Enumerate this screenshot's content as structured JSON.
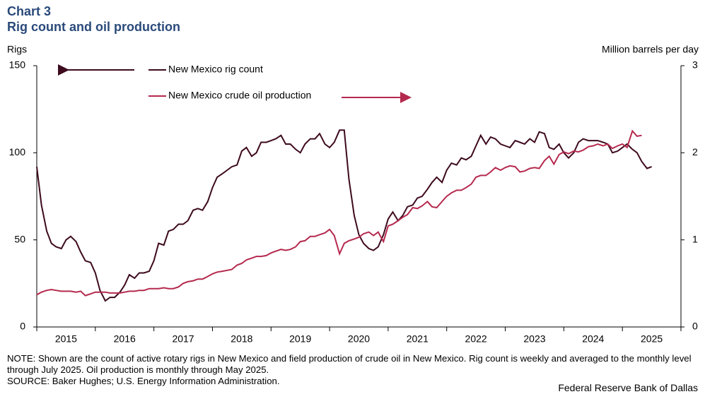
{
  "chart_data": {
    "type": "line",
    "chart_number": "Chart 3",
    "title": "Rig count and oil production",
    "y_label": "Rigs",
    "y2_label": "Million barrels per day",
    "note": "NOTE: Shown are the count of active rotary rigs in New Mexico and field production of crude oil in New Mexico. Rig count is weekly and averaged to the monthly level through July 2025. Oil production is monthly through May 2025.",
    "source": "SOURCE: Baker Hughes; U.S. Energy Information Administration.",
    "credit": "Federal Reserve Bank of Dallas",
    "xlim": [
      2015,
      2026
    ],
    "xticks": [
      {
        "value": 2015.5,
        "label": "2015"
      },
      {
        "value": 2016.5,
        "label": "2016"
      },
      {
        "value": 2017.5,
        "label": "2017"
      },
      {
        "value": 2018.5,
        "label": "2018"
      },
      {
        "value": 2019.5,
        "label": "2019"
      },
      {
        "value": 2020.5,
        "label": "2020"
      },
      {
        "value": 2021.5,
        "label": "2021"
      },
      {
        "value": 2022.5,
        "label": "2022"
      },
      {
        "value": 2023.5,
        "label": "2023"
      },
      {
        "value": 2024.5,
        "label": "2024"
      },
      {
        "value": 2025.5,
        "label": "2025"
      }
    ],
    "ylim": [
      0,
      150
    ],
    "yticks": [
      0,
      50,
      100,
      150
    ],
    "y2lim": [
      0,
      3
    ],
    "y2ticks": [
      0,
      1,
      2,
      3
    ],
    "x": [
      2015.0,
      2015.08,
      2015.17,
      2015.25,
      2015.33,
      2015.42,
      2015.5,
      2015.58,
      2015.67,
      2015.75,
      2015.83,
      2015.92,
      2016.0,
      2016.08,
      2016.17,
      2016.25,
      2016.33,
      2016.42,
      2016.5,
      2016.58,
      2016.67,
      2016.75,
      2016.83,
      2016.92,
      2017.0,
      2017.08,
      2017.17,
      2017.25,
      2017.33,
      2017.42,
      2017.5,
      2017.58,
      2017.67,
      2017.75,
      2017.83,
      2017.92,
      2018.0,
      2018.08,
      2018.17,
      2018.25,
      2018.33,
      2018.42,
      2018.5,
      2018.58,
      2018.67,
      2018.75,
      2018.83,
      2018.92,
      2019.0,
      2019.08,
      2019.17,
      2019.25,
      2019.33,
      2019.42,
      2019.5,
      2019.58,
      2019.67,
      2019.75,
      2019.83,
      2019.92,
      2020.0,
      2020.08,
      2020.17,
      2020.25,
      2020.33,
      2020.42,
      2020.5,
      2020.58,
      2020.67,
      2020.75,
      2020.83,
      2020.92,
      2021.0,
      2021.08,
      2021.17,
      2021.25,
      2021.33,
      2021.42,
      2021.5,
      2021.58,
      2021.67,
      2021.75,
      2021.83,
      2021.92,
      2022.0,
      2022.08,
      2022.17,
      2022.25,
      2022.33,
      2022.42,
      2022.5,
      2022.58,
      2022.67,
      2022.75,
      2022.83,
      2022.92,
      2023.0,
      2023.08,
      2023.17,
      2023.25,
      2023.33,
      2023.42,
      2023.5,
      2023.58,
      2023.67,
      2023.75,
      2023.83,
      2023.92,
      2024.0,
      2024.08,
      2024.17,
      2024.25,
      2024.33,
      2024.42,
      2024.5,
      2024.58,
      2024.67,
      2024.75,
      2024.83,
      2024.92,
      2025.0,
      2025.08,
      2025.17,
      2025.25,
      2025.33,
      2025.42,
      2025.5
    ],
    "series": [
      {
        "name": "New Mexico rig count",
        "color": "#3d0a1e",
        "axis": "y",
        "values": [
          92,
          70,
          55,
          48,
          46,
          45,
          50,
          52,
          49,
          43,
          38,
          37,
          31,
          21,
          15,
          17,
          17,
          20,
          24,
          30,
          28,
          31,
          31,
          32,
          38,
          48,
          47,
          55,
          56,
          59,
          59,
          61,
          67,
          68,
          67,
          72,
          80,
          86,
          88,
          90,
          92,
          93,
          101,
          103,
          98,
          100,
          106,
          106,
          107,
          108,
          110,
          105,
          105,
          102,
          100,
          105,
          108,
          108,
          111,
          105,
          103,
          106,
          113,
          113,
          85,
          64,
          53,
          48,
          45,
          44,
          46,
          53,
          62,
          66,
          61,
          64,
          69,
          70,
          74,
          75,
          79,
          83,
          86,
          83,
          90,
          94,
          93,
          97,
          96,
          98,
          104,
          110,
          105,
          109,
          108,
          105,
          104,
          103,
          107,
          106,
          105,
          108,
          106,
          112,
          111,
          103,
          102,
          105,
          100,
          97,
          100,
          106,
          108,
          107,
          107,
          107,
          106,
          105,
          100,
          101,
          103,
          105,
          102,
          100,
          95,
          91,
          92
        ]
      },
      {
        "name": "New Mexico crude oil production",
        "color": "#b5294e",
        "axis": "y2",
        "values": [
          0.37,
          0.4,
          0.42,
          0.43,
          0.42,
          0.41,
          0.41,
          0.41,
          0.4,
          0.41,
          0.36,
          0.38,
          0.4,
          0.4,
          0.4,
          0.39,
          0.39,
          0.39,
          0.4,
          0.41,
          0.41,
          0.42,
          0.42,
          0.44,
          0.44,
          0.44,
          0.45,
          0.44,
          0.44,
          0.46,
          0.5,
          0.52,
          0.53,
          0.55,
          0.55,
          0.58,
          0.61,
          0.63,
          0.64,
          0.65,
          0.66,
          0.71,
          0.73,
          0.77,
          0.79,
          0.81,
          0.81,
          0.82,
          0.85,
          0.87,
          0.89,
          0.88,
          0.89,
          0.92,
          0.98,
          0.99,
          1.04,
          1.04,
          1.06,
          1.08,
          1.12,
          1.05,
          0.84,
          0.96,
          0.99,
          1.01,
          1.03,
          1.07,
          1.09,
          1.05,
          1.09,
          0.98,
          1.16,
          1.18,
          1.22,
          1.26,
          1.29,
          1.37,
          1.36,
          1.39,
          1.44,
          1.38,
          1.37,
          1.44,
          1.5,
          1.54,
          1.57,
          1.57,
          1.6,
          1.64,
          1.72,
          1.74,
          1.74,
          1.78,
          1.83,
          1.8,
          1.83,
          1.85,
          1.84,
          1.78,
          1.79,
          1.82,
          1.83,
          1.82,
          1.91,
          1.96,
          1.87,
          1.98,
          2.01,
          1.99,
          2.02,
          2.01,
          2.03,
          2.07,
          2.08,
          2.1,
          2.08,
          2.1,
          2.05,
          2.08,
          2.1,
          2.06,
          2.25,
          2.19,
          2.2,
          null,
          null
        ]
      }
    ]
  }
}
